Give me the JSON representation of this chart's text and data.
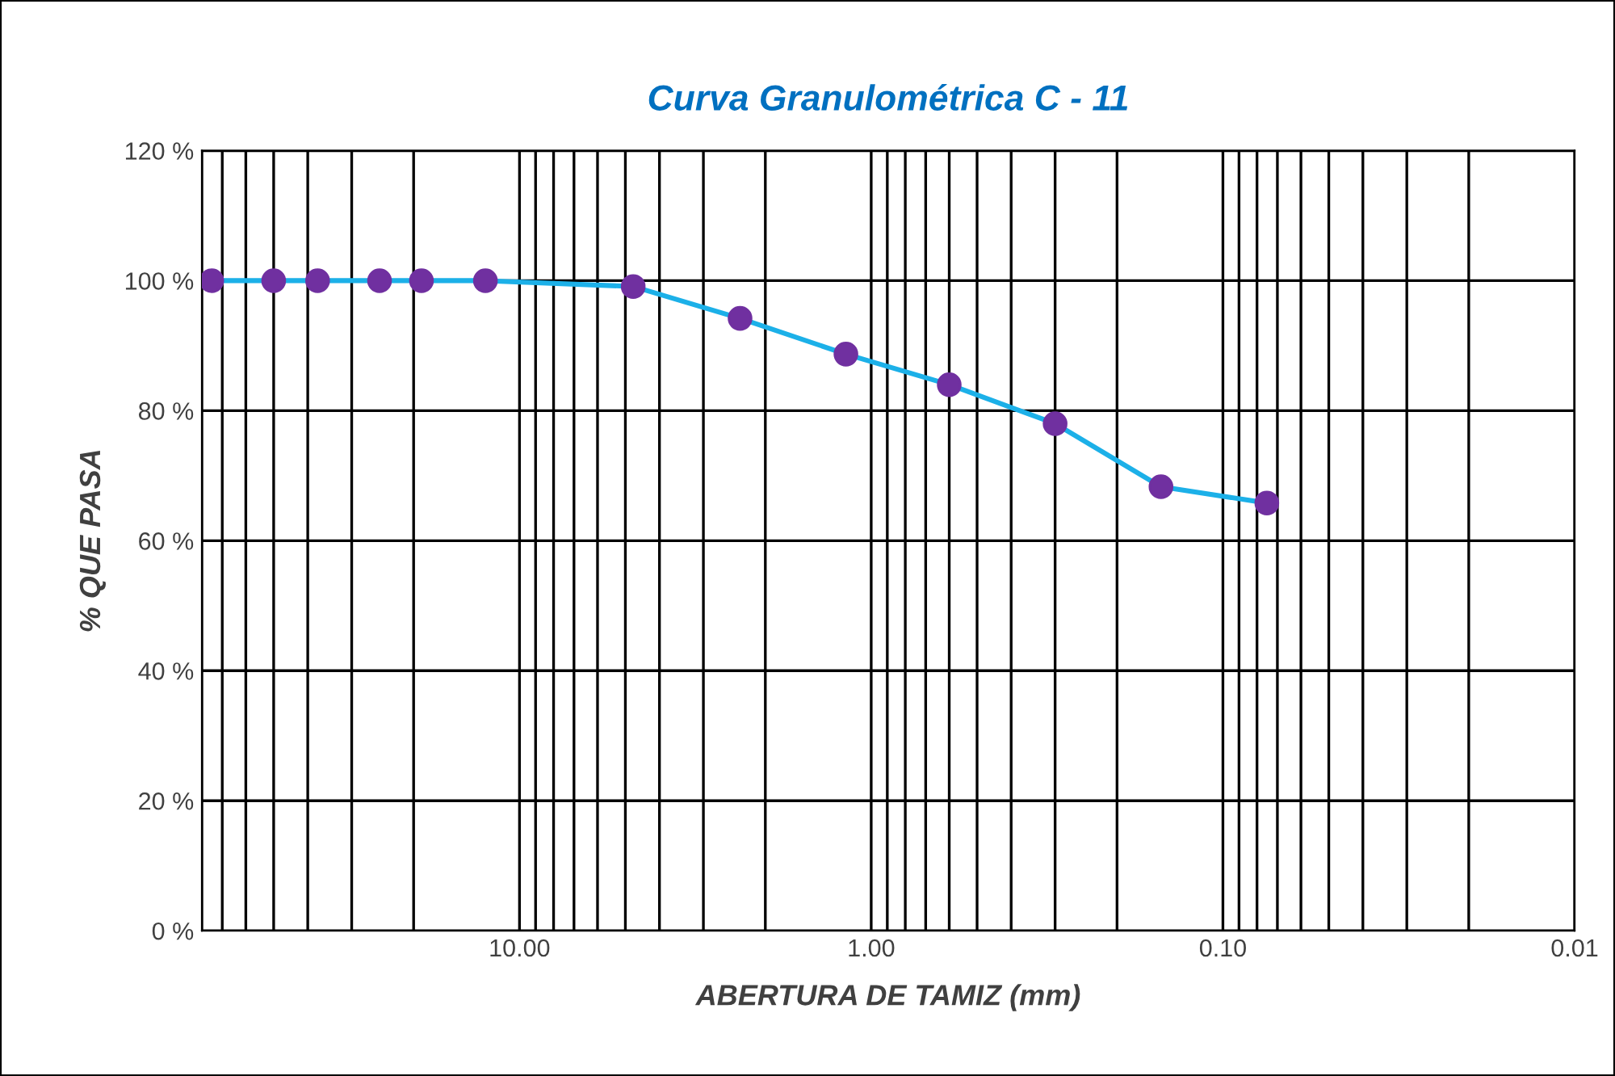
{
  "chart_data": {
    "type": "line",
    "title": "Curva Granulométrica C - 11",
    "xlabel": "ABERTURA DE TAMIZ (mm)",
    "ylabel": "% QUE PASA",
    "x": [
      75,
      50,
      37.5,
      25,
      19,
      12.5,
      4.75,
      2.36,
      1.18,
      0.6,
      0.3,
      0.15,
      0.075
    ],
    "series": [
      {
        "color": "#1cb0e8",
        "colors": [
          "#7030a0",
          "#7030a0",
          "#7030a0",
          "#7030a0",
          "#7030a0",
          "#7030a0",
          "#7030a0",
          "#7030a0",
          "#7030a0",
          "#7030a0",
          "#7030a0",
          "#7030a0",
          "#7030a0"
        ],
        "values": [
          100,
          100,
          100,
          100,
          100,
          100,
          99.1,
          94.2,
          88.7,
          84.0,
          78.0,
          68.3,
          65.8
        ]
      }
    ],
    "log": "x",
    "xlim": [
      80,
      0.01
    ],
    "xticks": [
      {
        "value": 10,
        "label": "10.00"
      },
      {
        "value": 1,
        "label": "1.00"
      },
      {
        "value": 0.1,
        "label": "0.10"
      },
      {
        "value": 0.01,
        "label": "0.01"
      }
    ],
    "ylim": [
      0,
      120
    ],
    "yticks": [
      {
        "value": 0,
        "label": "0 %"
      },
      {
        "value": 20,
        "label": "20 %"
      },
      {
        "value": 40,
        "label": "40 %"
      },
      {
        "value": 60,
        "label": "60 %"
      },
      {
        "value": 80,
        "label": "80 %"
      },
      {
        "value": 100,
        "label": "100 %"
      },
      {
        "value": 120,
        "label": "120 %"
      }
    ],
    "grid": true,
    "marker": "circle",
    "line_style": "solid",
    "legend": false
  }
}
